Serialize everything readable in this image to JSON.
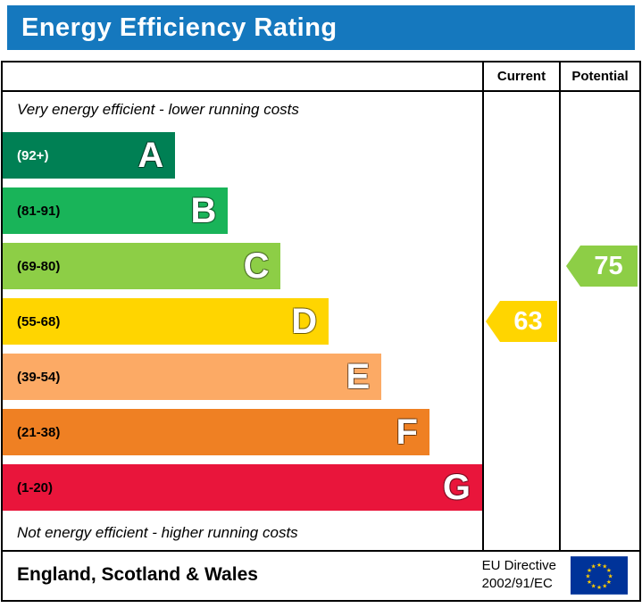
{
  "header": {
    "title": "Energy Efficiency Rating",
    "bg_color": "#1578be"
  },
  "table": {
    "current_label": "Current",
    "potential_label": "Potential",
    "top_note": "Very energy efficient - lower running costs",
    "bottom_note": "Not energy efficient - higher running costs"
  },
  "chart_data": {
    "type": "bar",
    "title": "Energy Efficiency Rating",
    "bands": [
      {
        "letter": "A",
        "range": "(92+)",
        "color": "#008054",
        "width_pct": 36,
        "range_color": "#ffffff"
      },
      {
        "letter": "B",
        "range": "(81-91)",
        "color": "#19b459",
        "width_pct": 47,
        "range_color": "#000000"
      },
      {
        "letter": "C",
        "range": "(69-80)",
        "color": "#8dce46",
        "width_pct": 58,
        "range_color": "#000000"
      },
      {
        "letter": "D",
        "range": "(55-68)",
        "color": "#ffd500",
        "width_pct": 68,
        "range_color": "#000000"
      },
      {
        "letter": "E",
        "range": "(39-54)",
        "color": "#fcaa65",
        "width_pct": 79,
        "range_color": "#000000"
      },
      {
        "letter": "F",
        "range": "(21-38)",
        "color": "#ef8023",
        "width_pct": 89,
        "range_color": "#000000"
      },
      {
        "letter": "G",
        "range": "(1-20)",
        "color": "#e9153b",
        "width_pct": 100,
        "range_color": "#000000"
      }
    ],
    "current": {
      "value": 63,
      "band": "D",
      "color": "#ffd500"
    },
    "potential": {
      "value": 75,
      "band": "C",
      "color": "#8dce46"
    }
  },
  "footer": {
    "region": "England, Scotland & Wales",
    "directive": [
      "EU Directive",
      "2002/91/EC"
    ]
  }
}
